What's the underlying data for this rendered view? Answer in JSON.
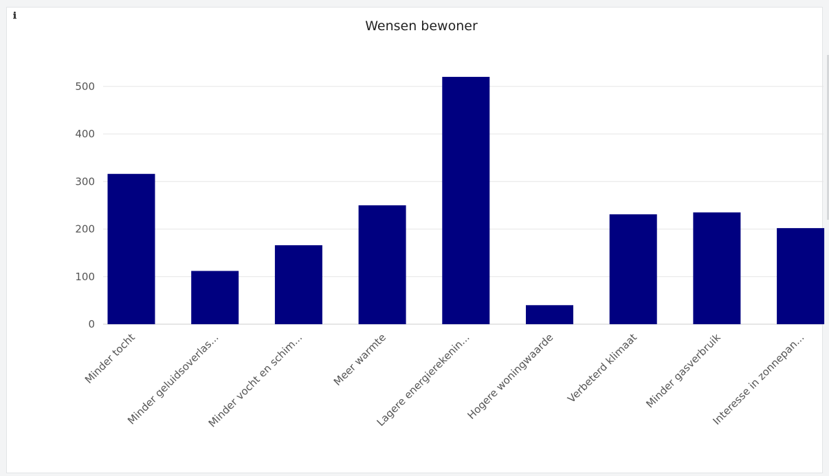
{
  "colors": {
    "bar": "#000080",
    "grid": "#e6e6e6",
    "axis": "#cccccc"
  },
  "info_icon": "ℹ",
  "chart_data": {
    "type": "bar",
    "title": "Wensen bewoner",
    "xlabel": "",
    "ylabel": "",
    "ylim": [
      0,
      560
    ],
    "yticks": [
      0,
      100,
      200,
      300,
      400,
      500
    ],
    "grid": true,
    "legend": "none",
    "categories": [
      "Minder tocht",
      "Minder geluidsoverlas...",
      "Minder vocht en schim...",
      "Meer warmte",
      "Lagere energierekenin...",
      "Hogere woningwaarde",
      "Verbeterd klimaat",
      "Minder gasverbruik",
      "Interesse in zonnepan..."
    ],
    "values": [
      316,
      112,
      166,
      250,
      520,
      40,
      231,
      235,
      202
    ]
  }
}
